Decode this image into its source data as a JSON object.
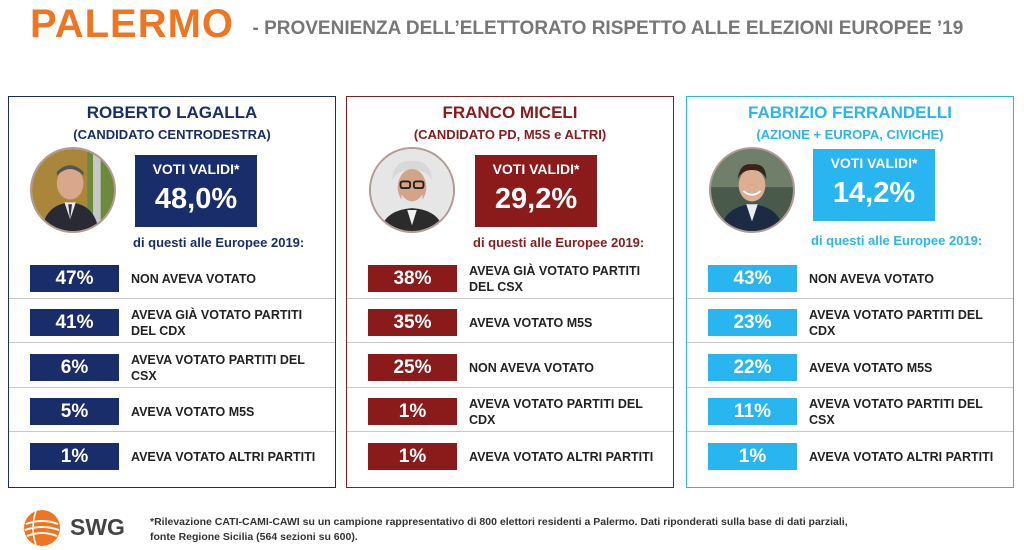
{
  "title": {
    "city": "PALERMO",
    "subtitle": "- PROVENIENZA DELL’ELETTORATO RISPETTO ALLE ELEZIONI EUROPEE ’19"
  },
  "colors": {
    "accent": "#ee7623",
    "lagalla": "#1a2d6b",
    "miceli": "#8b1a1a",
    "ferrandelli": "#29b6f0"
  },
  "candidates": [
    {
      "name": "ROBERTO LAGALLA",
      "coalition": "(CANDIDATO CENTRODESTRA)",
      "vote_label": "VOTI VALIDI*",
      "vote_value": "48,0%",
      "caption": "di questi alle Europee 2019:",
      "rows": [
        {
          "pct": "47%",
          "desc": "NON AVEVA VOTATO"
        },
        {
          "pct": "41%",
          "desc": "AVEVA GIÀ VOTATO PARTITI DEL CDX"
        },
        {
          "pct": "6%",
          "desc": "AVEVA VOTATO PARTITI DEL CSX"
        },
        {
          "pct": "5%",
          "desc": "AVEVA VOTATO M5S"
        },
        {
          "pct": "1%",
          "desc": "AVEVA VOTATO ALTRI PARTITI"
        }
      ]
    },
    {
      "name": "FRANCO MICELI",
      "coalition": "(CANDIDATO PD, M5S e ALTRI)",
      "vote_label": "VOTI VALIDI*",
      "vote_value": "29,2%",
      "caption": "di questi alle Europee 2019:",
      "rows": [
        {
          "pct": "38%",
          "desc": "AVEVA GIÀ VOTATO PARTITI DEL CSX"
        },
        {
          "pct": "35%",
          "desc": "AVEVA VOTATO M5S"
        },
        {
          "pct": "25%",
          "desc": "NON AVEVA VOTATO"
        },
        {
          "pct": "1%",
          "desc": "AVEVA VOTATO PARTITI DEL CDX"
        },
        {
          "pct": "1%",
          "desc": "AVEVA VOTATO ALTRI PARTITI"
        }
      ]
    },
    {
      "name": "FABRIZIO FERRANDELLI",
      "coalition": "(AZIONE + EUROPA, CIVICHE)",
      "vote_label": "VOTI VALIDI*",
      "vote_value": "14,2%",
      "caption": "di questi alle Europee 2019:",
      "rows": [
        {
          "pct": "43%",
          "desc": "NON AVEVA VOTATO"
        },
        {
          "pct": "23%",
          "desc": "AVEVA VOTATO PARTITI DEL CDX"
        },
        {
          "pct": "22%",
          "desc": "AVEVA VOTATO M5S"
        },
        {
          "pct": "11%",
          "desc": "AVEVA VOTATO PARTITI DEL CSX"
        },
        {
          "pct": "1%",
          "desc": "AVEVA VOTATO ALTRI PARTITI"
        }
      ]
    }
  ],
  "footer": {
    "brand": "SWG",
    "note": "*Rilevazione CATI-CAMI-CAWI su un campione rappresentativo di 800 elettori residenti a Palermo. Dati riponderati sulla base di dati parziali, fonte Regione Sicilia (564 sezioni su 600)."
  }
}
